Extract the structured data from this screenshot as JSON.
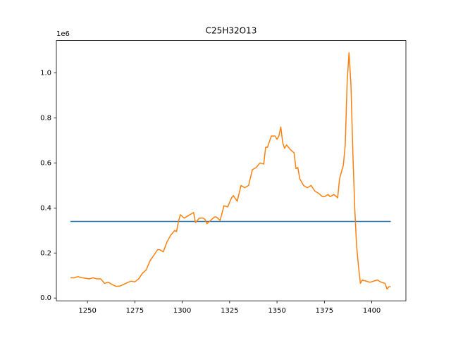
{
  "chart_data": {
    "type": "line",
    "title": "C25H32O13",
    "y_offset_label": "1e6",
    "xlim": [
      1233.6,
      1418
    ],
    "xticks": [
      1250,
      1275,
      1300,
      1325,
      1350,
      1375,
      1400
    ],
    "ylim": [
      -0.0125,
      1.144
    ],
    "yticks": [
      {
        "value": 0,
        "label": "0.0"
      },
      0.2,
      0.4,
      0.6,
      0.8,
      {
        "value": 1,
        "label": "1.0"
      }
    ],
    "grid": false,
    "series": [
      {
        "color": "#1f77b4",
        "x": [
          1241,
          1410
        ],
        "values": [
          0.34,
          0.34
        ]
      },
      {
        "color": "#ff7f0e",
        "x": [
          1241,
          1243,
          1245,
          1247,
          1249,
          1251,
          1253,
          1255,
          1257,
          1259,
          1261,
          1263,
          1265,
          1267,
          1269,
          1271,
          1273,
          1275,
          1277,
          1279,
          1281,
          1283,
          1285,
          1287,
          1288,
          1290,
          1292,
          1294,
          1296,
          1297,
          1298,
          1299,
          1301,
          1303,
          1305,
          1306,
          1307,
          1309,
          1311,
          1312,
          1313,
          1315,
          1317,
          1318,
          1320,
          1322,
          1324,
          1326,
          1327,
          1329,
          1331,
          1333,
          1335,
          1337,
          1339,
          1341,
          1343,
          1344,
          1345,
          1347,
          1349,
          1350,
          1351,
          1352,
          1353,
          1354,
          1355,
          1357,
          1359,
          1360,
          1361,
          1362,
          1364,
          1366,
          1368,
          1370,
          1372,
          1374,
          1375,
          1377,
          1378,
          1380,
          1382,
          1383,
          1384,
          1385,
          1386,
          1387,
          1388,
          1389,
          1390,
          1391,
          1392,
          1393,
          1394,
          1395,
          1397,
          1399,
          1401,
          1403,
          1405,
          1407,
          1408,
          1409,
          1410
        ],
        "values": [
          0.09,
          0.09,
          0.095,
          0.09,
          0.088,
          0.085,
          0.09,
          0.085,
          0.085,
          0.065,
          0.07,
          0.06,
          0.052,
          0.053,
          0.06,
          0.068,
          0.075,
          0.072,
          0.085,
          0.11,
          0.125,
          0.165,
          0.19,
          0.215,
          0.215,
          0.205,
          0.25,
          0.28,
          0.3,
          0.295,
          0.34,
          0.37,
          0.355,
          0.365,
          0.375,
          0.38,
          0.335,
          0.355,
          0.355,
          0.35,
          0.33,
          0.345,
          0.36,
          0.36,
          0.345,
          0.41,
          0.405,
          0.445,
          0.455,
          0.43,
          0.5,
          0.49,
          0.5,
          0.57,
          0.58,
          0.6,
          0.595,
          0.67,
          0.67,
          0.72,
          0.72,
          0.705,
          0.72,
          0.76,
          0.69,
          0.665,
          0.68,
          0.66,
          0.645,
          0.575,
          0.58,
          0.53,
          0.5,
          0.49,
          0.5,
          0.475,
          0.465,
          0.45,
          0.45,
          0.46,
          0.45,
          0.46,
          0.445,
          0.53,
          0.56,
          0.59,
          0.68,
          0.96,
          1.09,
          0.95,
          0.65,
          0.4,
          0.23,
          0.14,
          0.065,
          0.08,
          0.075,
          0.07,
          0.075,
          0.08,
          0.07,
          0.065,
          0.04,
          0.05,
          0.05
        ]
      }
    ]
  }
}
